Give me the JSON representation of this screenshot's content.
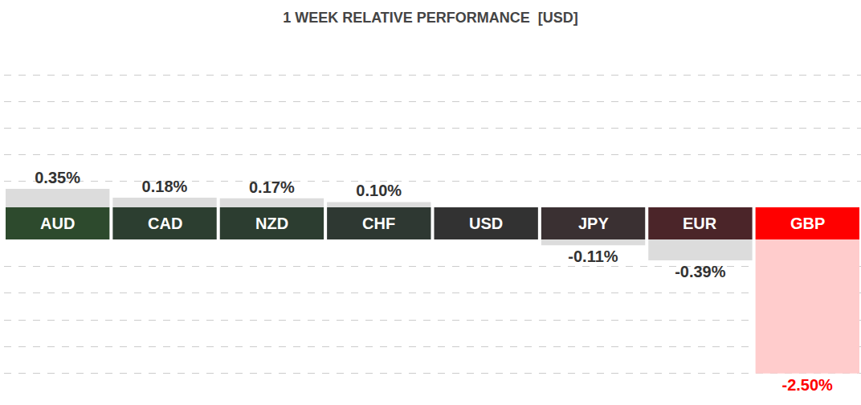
{
  "chart_data": {
    "type": "bar",
    "title": "1 WEEK RELATIVE PERFORMANCE  [USD]",
    "categories": [
      "AUD",
      "CAD",
      "NZD",
      "CHF",
      "USD",
      "JPY",
      "EUR",
      "GBP"
    ],
    "values": [
      0.35,
      0.18,
      0.17,
      0.1,
      0,
      -0.11,
      -0.39,
      -2.5
    ],
    "value_labels": [
      "0.35%",
      "0.18%",
      "0.17%",
      "0.10%",
      null,
      "-0.11%",
      "-0.39%",
      "-2.50%"
    ],
    "colors": [
      "#dcdcdc",
      "#dcdcdc",
      "#dcdcdc",
      "#dcdcdc",
      "#dcdcdc",
      "#dcdcdc",
      "#dcdcdc",
      "#ffcccc"
    ],
    "ylim": [
      -3,
      3
    ],
    "yticks": [
      -3,
      -2.5,
      -2,
      -1.5,
      -1,
      -0.5,
      0,
      0.5,
      1,
      1.5,
      2,
      2.5,
      3
    ],
    "grid": true,
    "data_labels": true,
    "tick_labels": false
  }
}
